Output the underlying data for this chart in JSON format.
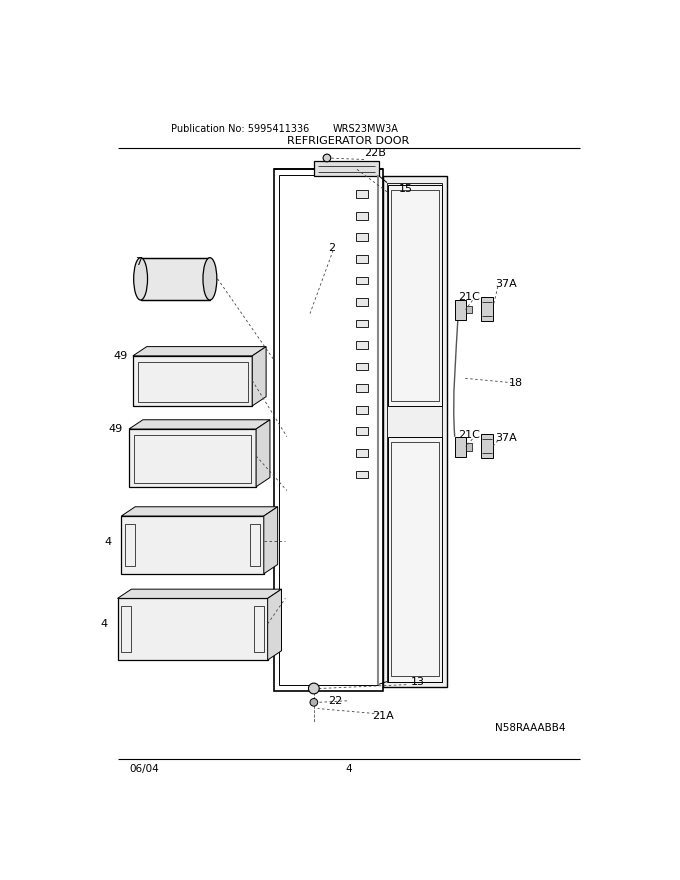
{
  "title": "REFRIGERATOR DOOR",
  "pub_no": "Publication No: 5995411336",
  "model": "WRS23MW3A",
  "date": "06/04",
  "page": "4",
  "image_code": "N58RAAABB4",
  "bg_color": "#ffffff",
  "lc": "#000000"
}
